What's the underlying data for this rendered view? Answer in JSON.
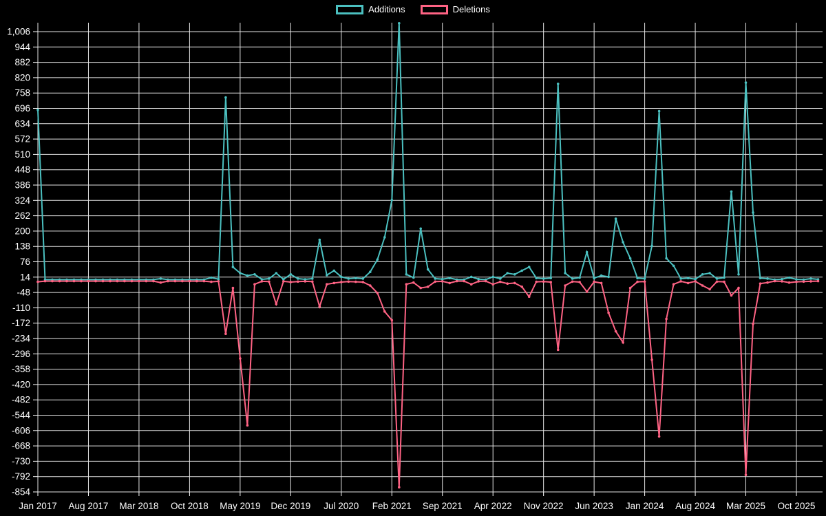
{
  "colors": {
    "background": "#000000",
    "text": "#ffffff",
    "grid": "#ffffff",
    "additions": "#4bc0c0",
    "deletions": "#ff6384"
  },
  "legend": {
    "items": [
      {
        "id": "additions",
        "label": "Additions",
        "color": "#4bc0c0"
      },
      {
        "id": "deletions",
        "label": "Deletions",
        "color": "#ff6384"
      }
    ]
  },
  "chart_data": {
    "type": "line",
    "title": "",
    "xlabel": "",
    "ylabel": "",
    "grid": true,
    "legend_position": "top",
    "ylim": [
      -868,
      1042
    ],
    "y_tick_values": [
      1006,
      944,
      882,
      820,
      758,
      696,
      634,
      572,
      510,
      448,
      386,
      324,
      262,
      200,
      138,
      76,
      14,
      -48,
      -110,
      -172,
      -234,
      -296,
      -358,
      -420,
      -482,
      -544,
      -606,
      -668,
      -730,
      -792,
      -854
    ],
    "y_tick_labels": [
      "1,006",
      "944",
      "882",
      "820",
      "758",
      "696",
      "634",
      "572",
      "510",
      "448",
      "386",
      "324",
      "262",
      "200",
      "138",
      "76",
      "14",
      "-48",
      "-110",
      "-172",
      "-234",
      "-296",
      "-358",
      "-420",
      "-482",
      "-544",
      "-606",
      "-668",
      "-730",
      "-792",
      "-854"
    ],
    "x_tick_labels": [
      "Jan 2017",
      "Aug 2017",
      "Mar 2018",
      "Oct 2018",
      "May 2019",
      "Dec 2019",
      "Jul 2020",
      "Feb 2021",
      "Sep 2021",
      "Apr 2022",
      "Nov 2022",
      "Jun 2023",
      "Jan 2024",
      "Aug 2024",
      "Mar 2025",
      "Oct 2025"
    ],
    "x_tick_every_n_months": 7,
    "x": [
      "Jan 2017",
      "Feb 2017",
      "Mar 2017",
      "Apr 2017",
      "May 2017",
      "Jun 2017",
      "Jul 2017",
      "Aug 2017",
      "Sep 2017",
      "Oct 2017",
      "Nov 2017",
      "Dec 2017",
      "Jan 2018",
      "Feb 2018",
      "Mar 2018",
      "Apr 2018",
      "May 2018",
      "Jun 2018",
      "Jul 2018",
      "Aug 2018",
      "Sep 2018",
      "Oct 2018",
      "Nov 2018",
      "Dec 2018",
      "Jan 2019",
      "Feb 2019",
      "Mar 2019",
      "Apr 2019",
      "May 2019",
      "Jun 2019",
      "Jul 2019",
      "Aug 2019",
      "Sep 2019",
      "Oct 2019",
      "Nov 2019",
      "Dec 2019",
      "Jan 2020",
      "Feb 2020",
      "Mar 2020",
      "Apr 2020",
      "May 2020",
      "Jun 2020",
      "Jul 2020",
      "Aug 2020",
      "Sep 2020",
      "Oct 2020",
      "Nov 2020",
      "Dec 2020",
      "Jan 2021",
      "Feb 2021",
      "Mar 2021",
      "Apr 2021",
      "May 2021",
      "Jun 2021",
      "Jul 2021",
      "Aug 2021",
      "Sep 2021",
      "Oct 2021",
      "Nov 2021",
      "Dec 2021",
      "Jan 2022",
      "Feb 2022",
      "Mar 2022",
      "Apr 2022",
      "May 2022",
      "Jun 2022",
      "Jul 2022",
      "Aug 2022",
      "Sep 2022",
      "Oct 2022",
      "Nov 2022",
      "Dec 2022",
      "Jan 2023",
      "Feb 2023",
      "Mar 2023",
      "Apr 2023",
      "May 2023",
      "Jun 2023",
      "Jul 2023",
      "Aug 2023",
      "Sep 2023",
      "Oct 2023",
      "Nov 2023",
      "Dec 2023",
      "Jan 2024",
      "Feb 2024",
      "Mar 2024",
      "Apr 2024",
      "May 2024",
      "Jun 2024",
      "Jul 2024",
      "Aug 2024",
      "Sep 2024",
      "Oct 2024",
      "Nov 2024",
      "Dec 2024",
      "Jan 2025",
      "Feb 2025",
      "Mar 2025",
      "Apr 2025",
      "May 2025",
      "Jun 2025",
      "Jul 2025",
      "Aug 2025",
      "Sep 2025",
      "Oct 2025",
      "Nov 2025",
      "Dec 2025",
      "Jan 2026"
    ],
    "series": [
      {
        "name": "Additions",
        "color": "#4bc0c0",
        "values": [
          690,
          4,
          4,
          4,
          4,
          4,
          4,
          4,
          4,
          4,
          4,
          4,
          4,
          4,
          4,
          4,
          4,
          8,
          4,
          4,
          4,
          4,
          4,
          4,
          12,
          6,
          740,
          55,
          30,
          20,
          25,
          5,
          8,
          30,
          5,
          25,
          8,
          5,
          8,
          165,
          22,
          40,
          15,
          8,
          10,
          8,
          35,
          85,
          175,
          325,
          1040,
          25,
          12,
          210,
          45,
          8,
          6,
          10,
          4,
          4,
          15,
          6,
          4,
          15,
          8,
          30,
          25,
          40,
          55,
          10,
          8,
          10,
          795,
          30,
          8,
          12,
          115,
          10,
          20,
          15,
          250,
          155,
          90,
          10,
          8,
          140,
          685,
          90,
          60,
          8,
          10,
          6,
          25,
          30,
          8,
          12,
          360,
          25,
          800,
          275,
          10,
          8,
          4,
          6,
          12,
          5,
          4,
          8,
          5
        ]
      },
      {
        "name": "Deletions",
        "color": "#ff6384",
        "values": [
          -5,
          -2,
          -2,
          -2,
          -2,
          -2,
          -2,
          -2,
          -2,
          -2,
          -2,
          -2,
          -2,
          -2,
          -2,
          -2,
          -2,
          -8,
          -2,
          -2,
          -2,
          -2,
          -2,
          -2,
          -5,
          -3,
          -215,
          -30,
          -315,
          -585,
          -15,
          -3,
          -4,
          -95,
          -3,
          -6,
          -4,
          -3,
          -4,
          -105,
          -15,
          -10,
          -6,
          -4,
          -5,
          -6,
          -20,
          -50,
          -125,
          -160,
          -835,
          -15,
          -8,
          -30,
          -25,
          -4,
          -3,
          -10,
          -2,
          -2,
          -15,
          -3,
          -2,
          -15,
          -5,
          -12,
          -10,
          -25,
          -65,
          -5,
          -4,
          -6,
          -280,
          -20,
          -4,
          -6,
          -45,
          -5,
          -10,
          -130,
          -205,
          -250,
          -30,
          -5,
          -4,
          -320,
          -630,
          -155,
          -15,
          -3,
          -10,
          -3,
          -20,
          -35,
          -4,
          -5,
          -60,
          -30,
          -785,
          -175,
          -12,
          -8,
          -2,
          -3,
          -8,
          -5,
          -4,
          -3,
          -2
        ]
      }
    ]
  }
}
